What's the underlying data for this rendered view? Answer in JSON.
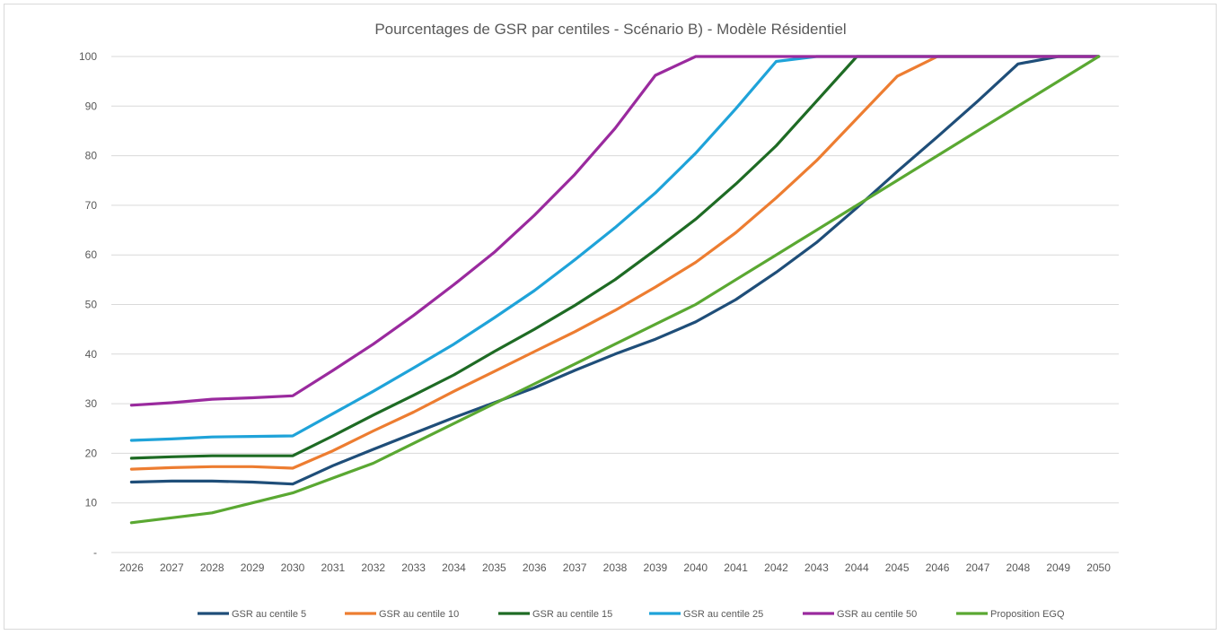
{
  "chart_data": {
    "type": "line",
    "title": "Pourcentages de GSR par centiles - Scénario B) - Modèle Résidentiel",
    "xlabel": "",
    "ylabel": "",
    "ylim": [
      0,
      100
    ],
    "y_ticks": [
      "-",
      "10",
      "20",
      "30",
      "40",
      "50",
      "60",
      "70",
      "80",
      "90",
      "100"
    ],
    "grid": true,
    "legend_position": "bottom",
    "categories": [
      "2026",
      "2027",
      "2028",
      "2029",
      "2030",
      "2031",
      "2032",
      "2033",
      "2034",
      "2035",
      "2036",
      "2037",
      "2038",
      "2039",
      "2040",
      "2041",
      "2042",
      "2043",
      "2044",
      "2045",
      "2046",
      "2047",
      "2048",
      "2049",
      "2050"
    ],
    "series": [
      {
        "name": "GSR au centile 5",
        "color": "#1f4e79",
        "values": [
          14.2,
          14.4,
          14.4,
          14.2,
          13.8,
          17.5,
          20.8,
          24.0,
          27.2,
          30.2,
          33.2,
          36.7,
          40.0,
          43.0,
          46.5,
          51.0,
          56.5,
          62.5,
          69.5,
          76.8,
          83.8,
          91.0,
          98.5,
          100,
          100
        ]
      },
      {
        "name": "GSR au centile 10",
        "color": "#ed7d31",
        "values": [
          16.8,
          17.1,
          17.3,
          17.3,
          17.0,
          20.5,
          24.5,
          28.3,
          32.5,
          36.5,
          40.5,
          44.5,
          48.8,
          53.5,
          58.5,
          64.5,
          71.5,
          79.0,
          87.5,
          96.0,
          100,
          100,
          100,
          100,
          100
        ]
      },
      {
        "name": "GSR au centile 15",
        "color": "#1e6b24",
        "values": [
          19.0,
          19.3,
          19.5,
          19.5,
          19.5,
          23.5,
          27.7,
          31.7,
          35.8,
          40.5,
          45.0,
          49.8,
          55.0,
          61.0,
          67.2,
          74.3,
          82.0,
          91.0,
          100,
          100,
          100,
          100,
          100,
          100,
          100
        ]
      },
      {
        "name": "GSR au centile 25",
        "color": "#1fa3d9",
        "values": [
          22.6,
          22.9,
          23.3,
          23.4,
          23.5,
          28.0,
          32.5,
          37.2,
          42.0,
          47.3,
          52.8,
          59.0,
          65.5,
          72.5,
          80.5,
          89.5,
          99.0,
          100,
          100,
          100,
          100,
          100,
          100,
          100,
          100
        ]
      },
      {
        "name": "GSR au centile 50",
        "color": "#9a2a9e",
        "values": [
          29.7,
          30.2,
          30.9,
          31.2,
          31.6,
          36.7,
          42.0,
          47.8,
          54.0,
          60.5,
          68.0,
          76.2,
          85.5,
          96.2,
          100,
          100,
          100,
          100,
          100,
          100,
          100,
          100,
          100,
          100,
          100
        ]
      },
      {
        "name": "Proposition EGQ",
        "color": "#5aa832",
        "values": [
          6,
          7,
          8,
          10,
          12,
          15,
          18,
          22,
          26,
          30,
          34,
          38,
          42,
          46,
          50,
          55,
          60,
          65,
          70,
          75,
          80,
          85,
          90,
          95,
          100
        ]
      }
    ]
  }
}
